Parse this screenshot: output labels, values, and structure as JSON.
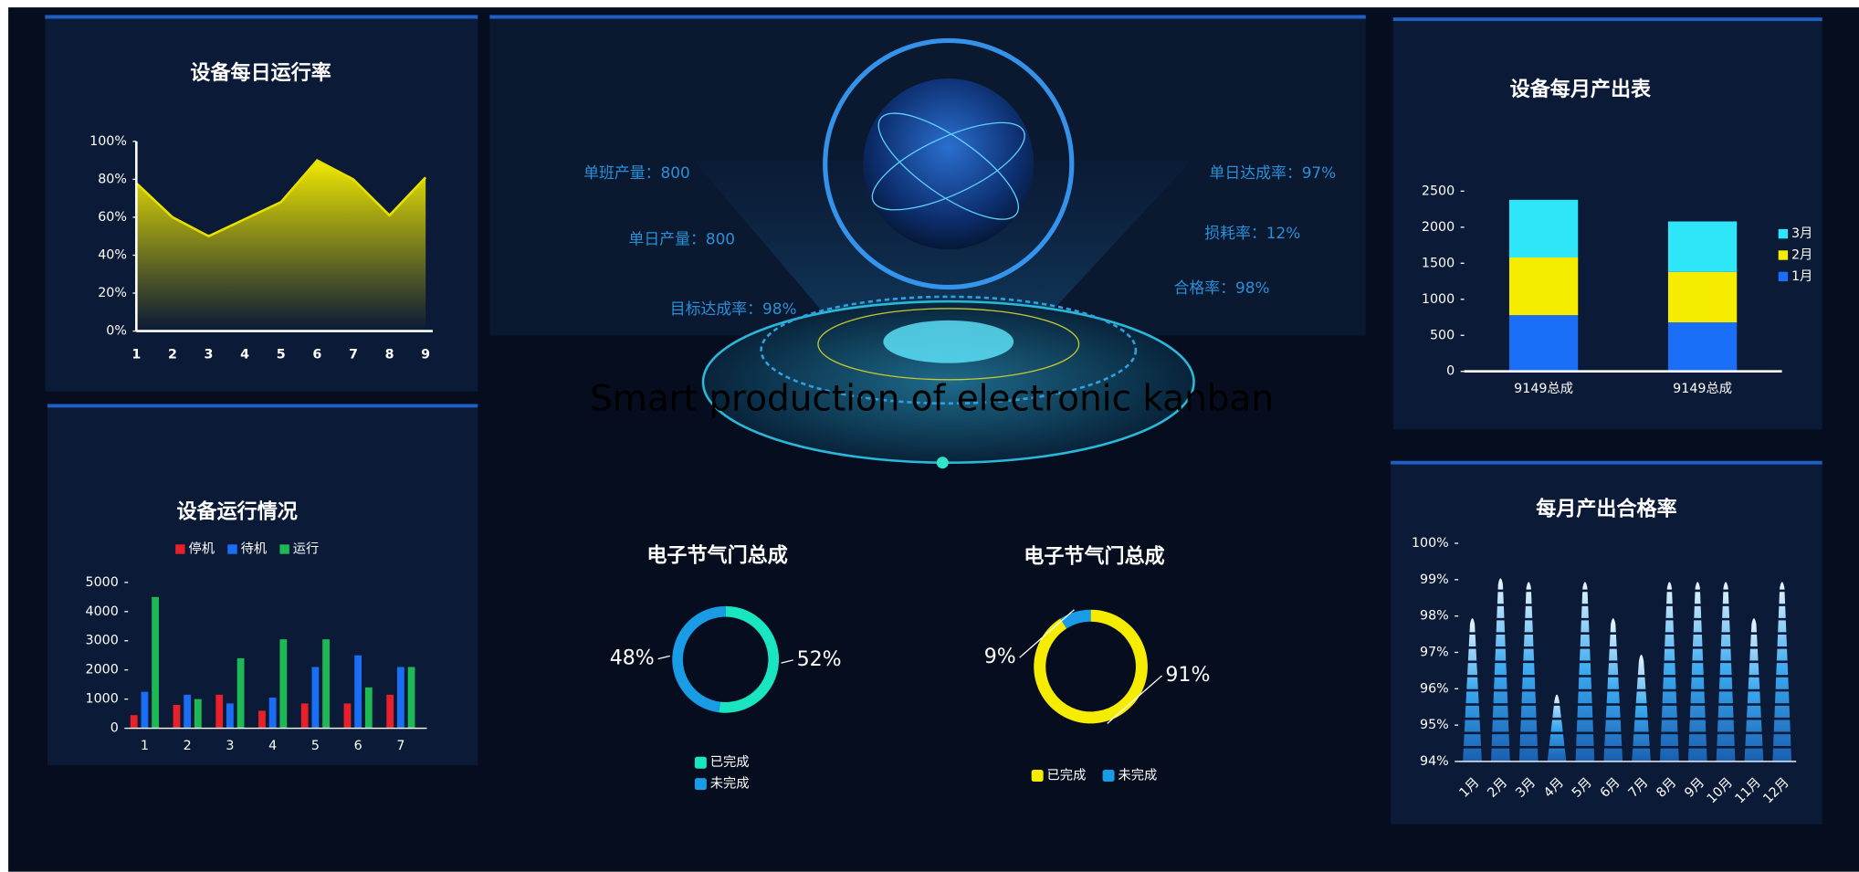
{
  "title": "Smart production of electronic kanban",
  "center_stats": {
    "left": [
      "单班产量：800",
      "单日产量：800",
      "目标达成率：98%"
    ],
    "right": [
      "单日达成率：97%",
      "损耗率：12%",
      "合格率：98%"
    ]
  },
  "chart_data": [
    {
      "type": "area",
      "title": "设备每日运行率",
      "x": [
        1,
        2,
        3,
        4,
        5,
        6,
        7,
        8,
        9
      ],
      "xlim": [
        1,
        9
      ],
      "xticks": [
        1,
        2,
        3,
        4,
        5,
        6,
        7,
        8,
        9
      ],
      "values": [
        78,
        60,
        50,
        59,
        68,
        90,
        80,
        61,
        81
      ],
      "ylim": [
        0,
        100
      ],
      "yticks": [
        {
          "value": 0,
          "label": "0%"
        },
        {
          "value": 20,
          "label": "20%"
        },
        {
          "value": 40,
          "label": "40%"
        },
        {
          "value": 60,
          "label": "60%"
        },
        {
          "value": 80,
          "label": "80%"
        },
        {
          "value": 100,
          "label": "100%"
        }
      ],
      "color": "#e8e000"
    },
    {
      "type": "bar",
      "title": "设备运行情况",
      "categories": [
        "1",
        "2",
        "3",
        "4",
        "5",
        "6",
        "7"
      ],
      "series": [
        {
          "name": "停机",
          "color": "#e8202a",
          "values": [
            450,
            800,
            1150,
            600,
            850,
            850,
            1150
          ]
        },
        {
          "name": "待机",
          "color": "#1a6ef5",
          "values": [
            1250,
            1150,
            850,
            1050,
            2100,
            2500,
            2100
          ]
        },
        {
          "name": "运行",
          "color": "#1db954",
          "values": [
            4500,
            1000,
            2400,
            3050,
            3050,
            1400,
            2100
          ]
        }
      ],
      "ylim": [
        0,
        5000
      ],
      "yticks": [
        0,
        1000,
        2000,
        3000,
        4000,
        5000
      ],
      "legend": "top"
    },
    {
      "type": "stacked_bar",
      "title": "设备每月产出表",
      "categories": [
        "9149总成",
        "9149总成"
      ],
      "series": [
        {
          "name": "1月",
          "color": "#1a6ef5",
          "values": [
            780,
            680
          ]
        },
        {
          "name": "2月",
          "color": "#f5ec00",
          "values": [
            800,
            700
          ]
        },
        {
          "name": "3月",
          "color": "#2ee6f7",
          "values": [
            800,
            700
          ]
        }
      ],
      "ylim": [
        0,
        2500
      ],
      "yticks": [
        0,
        500,
        1000,
        1500,
        2000,
        2500
      ],
      "legend": "right"
    },
    {
      "type": "donut",
      "title": "电子节气门总成",
      "categories": [
        "已完成",
        "未完成"
      ],
      "values": [
        52,
        48
      ],
      "value_labels": [
        "52%",
        "48%"
      ],
      "colors": [
        "#19e6c1",
        "#1a9be6"
      ]
    },
    {
      "type": "donut",
      "title": "电子节气门总成",
      "categories": [
        "已完成",
        "未完成"
      ],
      "values": [
        91,
        9
      ],
      "value_labels": [
        "91%",
        "9%"
      ],
      "colors": [
        "#f5ec00",
        "#1a9be6"
      ]
    },
    {
      "type": "pictorial_bar",
      "title": "每月产出合格率",
      "categories": [
        "1月",
        "2月",
        "3月",
        "4月",
        "5月",
        "6月",
        "7月",
        "8月",
        "9月",
        "10月",
        "11月",
        "12月"
      ],
      "values": [
        98.1,
        99.2,
        99.1,
        96,
        99.1,
        98.1,
        97.1,
        99.1,
        99.1,
        99.1,
        98.1,
        99.1
      ],
      "ylim": [
        94,
        100
      ],
      "yticks": [
        {
          "value": 94,
          "label": "94%"
        },
        {
          "value": 95,
          "label": "95%"
        },
        {
          "value": 96,
          "label": "96%"
        },
        {
          "value": 97,
          "label": "97%"
        },
        {
          "value": 98,
          "label": "98%"
        },
        {
          "value": 99,
          "label": "99%"
        },
        {
          "value": 100,
          "label": "100%"
        }
      ],
      "color": "#3aa8f0"
    }
  ]
}
